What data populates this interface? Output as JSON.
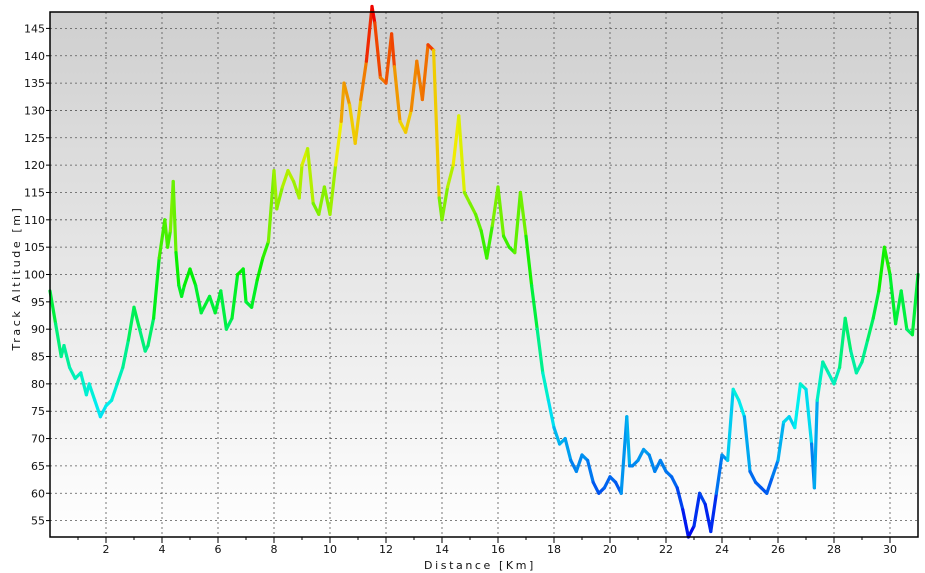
{
  "chart_data": {
    "type": "line",
    "title": "",
    "xlabel": "Distance [Km]",
    "ylabel": "Track Altitude [m]",
    "xlim": [
      0,
      31
    ],
    "ylim": [
      52,
      148
    ],
    "x_ticks": [
      2,
      4,
      6,
      8,
      10,
      12,
      14,
      16,
      18,
      20,
      22,
      24,
      26,
      28,
      30
    ],
    "x_tick_labels": [
      "2",
      "4",
      "6",
      "8",
      "10",
      "12",
      "14",
      "16",
      "18",
      "20",
      "22",
      "24",
      "26",
      "28",
      "30"
    ],
    "y_ticks": [
      55,
      60,
      65,
      70,
      75,
      80,
      85,
      90,
      95,
      100,
      105,
      110,
      115,
      120,
      125,
      130,
      135,
      140,
      145
    ],
    "y_tick_labels": [
      "55",
      "60",
      "65",
      "70",
      "75",
      "80",
      "85",
      "90",
      "95",
      "100",
      "105",
      "110",
      "115",
      "120",
      "125",
      "130",
      "135",
      "140",
      "145"
    ],
    "grid": true,
    "color_scale": {
      "min_altitude": 52,
      "max_altitude": 148,
      "low_color": "#0000ff",
      "high_color": "#ff0000"
    },
    "series": [
      {
        "x": [
          0.0,
          0.2,
          0.4,
          0.5,
          0.7,
          0.9,
          1.1,
          1.3,
          1.4,
          1.6,
          1.8,
          2.0,
          2.2,
          2.4,
          2.6,
          2.8,
          3.0,
          3.2,
          3.4,
          3.5,
          3.7,
          3.9,
          4.1,
          4.2,
          4.3,
          4.4,
          4.5,
          4.6,
          4.7,
          4.8,
          5.0,
          5.2,
          5.4,
          5.5,
          5.7,
          5.9,
          6.1,
          6.3,
          6.5,
          6.7,
          6.9,
          7.0,
          7.2,
          7.4,
          7.6,
          7.8,
          8.0,
          8.1,
          8.3,
          8.5,
          8.7,
          8.9,
          9.0,
          9.2,
          9.4,
          9.6,
          9.8,
          10.0,
          10.2,
          10.4,
          10.5,
          10.7,
          10.9,
          11.1,
          11.3,
          11.5,
          11.6,
          11.8,
          12.0,
          12.2,
          12.3,
          12.5,
          12.7,
          12.9,
          13.1,
          13.3,
          13.5,
          13.7,
          13.9,
          14.0,
          14.2,
          14.4,
          14.6,
          14.8,
          15.0,
          15.2,
          15.4,
          15.6,
          15.8,
          16.0,
          16.2,
          16.4,
          16.6,
          16.8,
          17.0,
          17.2,
          17.4,
          17.6,
          17.8,
          18.0,
          18.2,
          18.4,
          18.6,
          18.8,
          19.0,
          19.2,
          19.4,
          19.6,
          19.8,
          20.0,
          20.2,
          20.4,
          20.6,
          20.7,
          20.8,
          21.0,
          21.2,
          21.4,
          21.6,
          21.8,
          22.0,
          22.2,
          22.4,
          22.6,
          22.8,
          23.0,
          23.2,
          23.4,
          23.6,
          23.8,
          24.0,
          24.2,
          24.4,
          24.6,
          24.8,
          25.0,
          25.2,
          25.4,
          25.6,
          25.8,
          26.0,
          26.2,
          26.4,
          26.6,
          26.8,
          27.0,
          27.2,
          27.3,
          27.4,
          27.6,
          27.8,
          28.0,
          28.2,
          28.4,
          28.6,
          28.8,
          29.0,
          29.2,
          29.4,
          29.6,
          29.8,
          30.0,
          30.2,
          30.4,
          30.6,
          30.8,
          31.0
        ],
        "y": [
          97,
          91,
          85,
          87,
          83,
          81,
          82,
          78,
          80,
          77,
          74,
          76,
          77,
          80,
          83,
          88,
          94,
          90,
          86,
          87,
          92,
          103,
          110,
          105,
          108,
          117,
          104,
          98,
          96,
          98,
          101,
          98,
          93,
          94,
          96,
          93,
          97,
          90,
          92,
          100,
          101,
          95,
          94,
          99,
          103,
          106,
          119,
          112,
          116,
          119,
          117,
          114,
          120,
          123,
          113,
          111,
          116,
          111,
          120,
          128,
          135,
          131,
          124,
          132,
          139,
          149,
          146,
          136,
          135,
          144,
          138,
          128,
          126,
          130,
          139,
          132,
          142,
          141,
          114,
          110,
          116,
          120,
          129,
          115,
          113,
          111,
          108,
          103,
          109,
          116,
          107,
          105,
          104,
          115,
          107,
          98,
          90,
          82,
          77,
          72,
          69,
          70,
          66,
          64,
          67,
          66,
          62,
          60,
          61,
          63,
          62,
          60,
          74,
          65,
          65,
          66,
          68,
          67,
          64,
          66,
          64,
          63,
          61,
          57,
          52,
          54,
          60,
          58,
          53,
          60,
          67,
          66,
          79,
          77,
          74,
          64,
          62,
          61,
          60,
          63,
          66,
          73,
          74,
          72,
          80,
          79,
          69,
          61,
          77,
          84,
          82,
          80,
          83,
          92,
          86,
          82,
          84,
          88,
          92,
          97,
          105,
          100,
          91,
          97,
          90,
          89,
          100
        ]
      }
    ]
  }
}
